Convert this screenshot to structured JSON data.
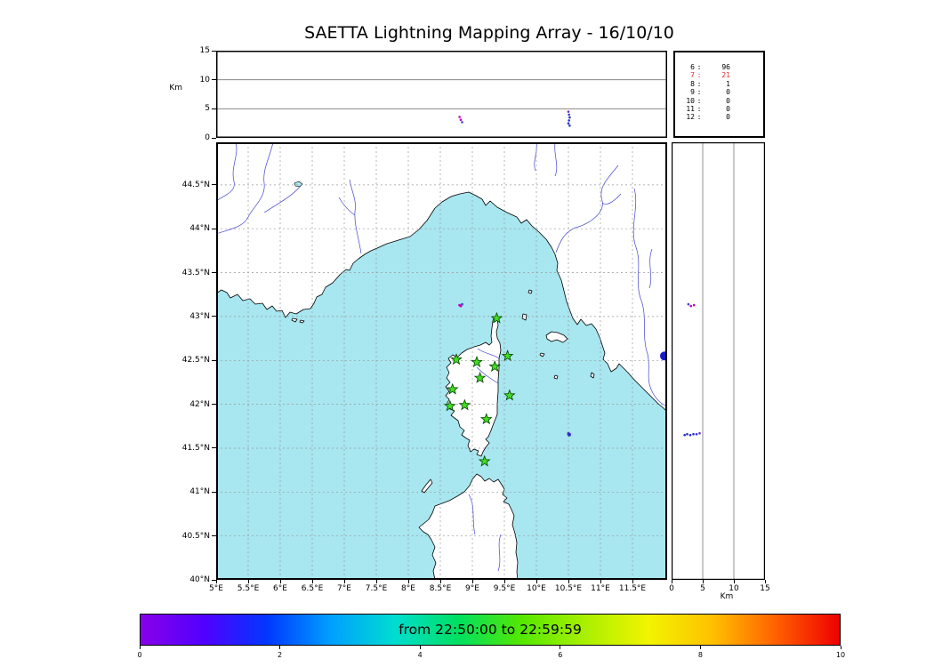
{
  "title": "SAETTA Lightning Mapping Array - 16/10/10",
  "axes": {
    "alt_lon": {
      "ylabel": "Km",
      "yticks": [
        15,
        10,
        5,
        0
      ],
      "ymax": 15,
      "grid_km": [
        5,
        10
      ]
    },
    "alt_lat": {
      "xlabel": "Km",
      "xticks": [
        0,
        5,
        10,
        15
      ],
      "xmax": 15,
      "grid_km": [
        5,
        10
      ]
    },
    "map": {
      "lat_ticks": [
        {
          "label": "44.5°N",
          "value": 44.5
        },
        {
          "label": "44°N",
          "value": 44
        },
        {
          "label": "43.5°N",
          "value": 43.5
        },
        {
          "label": "43°N",
          "value": 43
        },
        {
          "label": "42.5°N",
          "value": 42.5
        },
        {
          "label": "42°N",
          "value": 42
        },
        {
          "label": "41.5°N",
          "value": 41.5
        },
        {
          "label": "41°N",
          "value": 41
        },
        {
          "label": "40.5°N",
          "value": 40.5
        },
        {
          "label": "40°N",
          "value": 40
        }
      ],
      "lon_ticks": [
        {
          "label": "5°E",
          "value": 5
        },
        {
          "label": "5.5°E",
          "value": 5.5
        },
        {
          "label": "6°E",
          "value": 6
        },
        {
          "label": "6.5°E",
          "value": 6.5
        },
        {
          "label": "7°E",
          "value": 7
        },
        {
          "label": "7.5°E",
          "value": 7.5
        },
        {
          "label": "8°E",
          "value": 8
        },
        {
          "label": "8.5°E",
          "value": 8.5
        },
        {
          "label": "9°E",
          "value": 9
        },
        {
          "label": "9.5°E",
          "value": 9.5
        },
        {
          "label": "10°E",
          "value": 10
        },
        {
          "label": "10.5°E",
          "value": 10.5
        },
        {
          "label": "11°E",
          "value": 11
        },
        {
          "label": "11.5°E",
          "value": 11.5
        }
      ],
      "lon_range": [
        5,
        12.04
      ],
      "lat_range": [
        40,
        44.985
      ]
    }
  },
  "station_counts": {
    "rows": [
      {
        "stations": "6",
        "count": "96",
        "color": "#000000"
      },
      {
        "stations": "7",
        "count": "21",
        "color": "#e83030"
      },
      {
        "stations": "8",
        "count": "1",
        "color": "#000000"
      },
      {
        "stations": "9",
        "count": "0",
        "color": "#000000"
      },
      {
        "stations": "10",
        "count": "0",
        "color": "#000000"
      },
      {
        "stations": "11",
        "count": "0",
        "color": "#000000"
      },
      {
        "stations": "12",
        "count": "0",
        "color": "#000000"
      }
    ]
  },
  "colorbar": {
    "label": "from 22:50:00 to 22:59:59",
    "ticks": [
      0,
      2,
      4,
      6,
      8,
      10
    ],
    "gradient": [
      "#8800e8",
      "#5000ff",
      "#0038ff",
      "#00a0ff",
      "#00ddd0",
      "#00e060",
      "#55e800",
      "#aaf000",
      "#f2f400",
      "#ffc000",
      "#ff6000",
      "#ee0000"
    ]
  },
  "colors": {
    "sea": "#a8e6f0",
    "land": "#ffffff",
    "coast": "#000000",
    "river": "#4444cc",
    "grid": "#999999",
    "star_fill": "#44dd22",
    "star_edge": "#004400"
  },
  "chart_data": {
    "type": "scatter",
    "stations_lon_lat": [
      [
        9.38,
        42.98
      ],
      [
        8.75,
        42.51
      ],
      [
        9.07,
        42.48
      ],
      [
        9.35,
        42.43
      ],
      [
        9.55,
        42.55
      ],
      [
        9.12,
        42.3
      ],
      [
        8.69,
        42.17
      ],
      [
        9.58,
        42.1
      ],
      [
        8.65,
        41.98
      ],
      [
        8.88,
        41.99
      ],
      [
        9.22,
        41.83
      ],
      [
        9.19,
        41.35
      ]
    ],
    "sources": [
      {
        "lon": 8.8,
        "lat": 43.13,
        "alt_km": 3.6,
        "color": "#c000c0"
      },
      {
        "lon": 8.82,
        "lat": 43.12,
        "alt_km": 3.1,
        "color": "#c000c0"
      },
      {
        "lon": 8.84,
        "lat": 43.14,
        "alt_km": 2.7,
        "color": "#4040d0"
      },
      {
        "lon": 10.5,
        "lat": 41.67,
        "alt_km": 4.5,
        "color": "#7030c8"
      },
      {
        "lon": 10.51,
        "lat": 41.66,
        "alt_km": 4.0,
        "color": "#3038d0"
      },
      {
        "lon": 10.52,
        "lat": 41.66,
        "alt_km": 3.5,
        "color": "#2830cc"
      },
      {
        "lon": 10.51,
        "lat": 41.65,
        "alt_km": 3.0,
        "color": "#2830cc"
      },
      {
        "lon": 10.5,
        "lat": 41.66,
        "alt_km": 2.5,
        "color": "#2830cc"
      },
      {
        "lon": 10.52,
        "lat": 41.65,
        "alt_km": 2.1,
        "color": "#2830cc"
      }
    ],
    "edge_marker": {
      "lon": 12.0,
      "lat": 42.55,
      "color": "#1818c8",
      "radius_px": 5
    }
  }
}
